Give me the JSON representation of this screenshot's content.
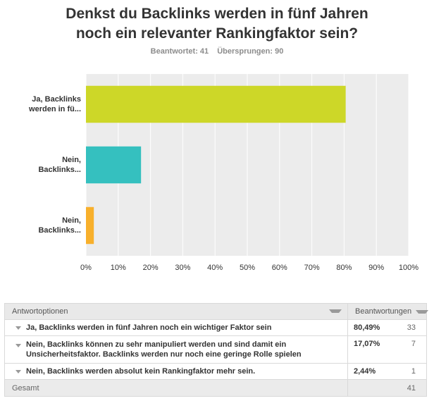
{
  "question": {
    "line1": "Denkst du Backlinks werden in fünf Jahren",
    "line2": "noch ein relevanter Rankingfaktor sein?"
  },
  "stats": {
    "answered": "Beantwortet: 41",
    "skipped": "Übersprungen: 90"
  },
  "chart_data": {
    "type": "bar",
    "orientation": "horizontal",
    "categories": [
      [
        "Ja, Backlinks",
        "werden in fü..."
      ],
      [
        "Nein,",
        "Backlinks..."
      ],
      [
        "Nein,",
        "Backlinks..."
      ]
    ],
    "values": [
      80.49,
      17.07,
      2.44
    ],
    "colors": [
      "#cdd728",
      "#35c0bf",
      "#f8b02c"
    ],
    "xlim": [
      0,
      100
    ],
    "xticks": [
      "0%",
      "10%",
      "20%",
      "30%",
      "40%",
      "50%",
      "60%",
      "70%",
      "80%",
      "90%",
      "100%"
    ],
    "grid": true,
    "plot_background": "#ececec"
  },
  "table": {
    "header_options": "Antwortoptionen",
    "header_responses": "Beantwortungen",
    "rows": [
      {
        "lines": [
          "Ja, Backlinks werden in fünf Jahren noch ein wichtiger Faktor sein"
        ],
        "percent": "80,49%",
        "count": "33"
      },
      {
        "lines": [
          "Nein, Backlinks können zu sehr manipuliert werden und sind damit ein",
          "Unsicherheitsfaktor. Backlinks werden nur noch eine geringe Rolle spielen"
        ],
        "percent": "17,07%",
        "count": "7"
      },
      {
        "lines": [
          "Nein, Backlinks werden absolut kein Rankingfaktor mehr sein."
        ],
        "percent": "2,44%",
        "count": "1"
      }
    ],
    "footer_label": "Gesamt",
    "footer_total": "41"
  }
}
